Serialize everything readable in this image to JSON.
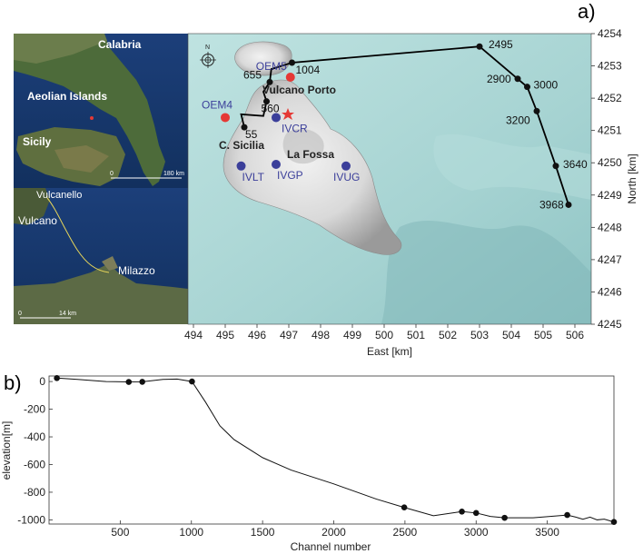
{
  "figure": {
    "panel_a_tag": "a)",
    "panel_b_tag": "b)"
  },
  "inset_top": {
    "labels": [
      "Calabria",
      "Aeolian Islands",
      "Sicily"
    ],
    "scale_start": "0",
    "scale_end": "180 km"
  },
  "inset_bottom": {
    "labels": [
      "Vulcanello",
      "Vulcano",
      "Milazzo"
    ],
    "scale_start": "0",
    "scale_end": "14 km"
  },
  "map": {
    "compass_letter": "N",
    "x_label": "East [km]",
    "y_label": "North [km]",
    "x_ticks": [
      "494",
      "495",
      "496",
      "497",
      "498",
      "499",
      "500",
      "501",
      "502",
      "503",
      "504",
      "505",
      "506"
    ],
    "y_ticks": [
      "4254",
      "4253",
      "4252",
      "4251",
      "4250",
      "4249",
      "4248",
      "4247",
      "4246",
      "4245"
    ],
    "place_labels": [
      "Vulcano Porto",
      "C. Sicilia",
      "La Fossa"
    ],
    "cable_markers": [
      {
        "label": "55",
        "east": 495.6,
        "north": 4251.1
      },
      {
        "label": "560",
        "east": 496.3,
        "north": 4251.9
      },
      {
        "label": "655",
        "east": 496.4,
        "north": 4252.5
      },
      {
        "label": "1004",
        "east": 497.1,
        "north": 4253.1
      },
      {
        "label": "2495",
        "east": 503.0,
        "north": 4253.6
      },
      {
        "label": "2900",
        "east": 504.2,
        "north": 4252.6
      },
      {
        "label": "3000",
        "east": 504.5,
        "north": 4252.35
      },
      {
        "label": "3200",
        "east": 504.8,
        "north": 4251.6
      },
      {
        "label": "3640",
        "east": 505.4,
        "north": 4249.9
      },
      {
        "label": "3968",
        "east": 505.8,
        "north": 4248.7
      }
    ],
    "stations": [
      {
        "label": "OEM5",
        "east": 497.05,
        "north": 4252.65,
        "type": "OBS"
      },
      {
        "label": "OEM4",
        "east": 495.0,
        "north": 4251.4,
        "type": "OBS"
      },
      {
        "label": "IVCR",
        "east": 496.6,
        "north": 4251.4,
        "type": "land"
      },
      {
        "label": "IVLT",
        "east": 495.5,
        "north": 4249.9,
        "type": "land"
      },
      {
        "label": "IVGP",
        "east": 496.6,
        "north": 4249.95,
        "type": "land"
      },
      {
        "label": "IVUG",
        "east": 498.8,
        "north": 4249.9,
        "type": "land"
      }
    ],
    "colors": {
      "obs": "#e53935",
      "land": "#3b3f9a",
      "cable": "#000000",
      "sea": "#a9d8d8"
    }
  },
  "chart_data": {
    "type": "line",
    "title": "",
    "xlabel": "Channel number",
    "ylabel": "elevation[m]",
    "xlim": [
      0,
      3968
    ],
    "ylim": [
      -1030,
      40
    ],
    "x_ticks": [
      "500",
      "1000",
      "1500",
      "2000",
      "2500",
      "3000",
      "3500"
    ],
    "y_ticks": [
      "0",
      "-200",
      "-400",
      "-600",
      "-800",
      "-1000"
    ],
    "x": [
      55,
      200,
      400,
      560,
      655,
      800,
      900,
      1004,
      1100,
      1200,
      1300,
      1500,
      1700,
      2000,
      2300,
      2495,
      2700,
      2900,
      3000,
      3100,
      3200,
      3400,
      3640,
      3700,
      3750,
      3800,
      3850,
      3900,
      3968
    ],
    "y": [
      25,
      15,
      0,
      -3,
      -2,
      15,
      18,
      0,
      -150,
      -320,
      -420,
      -550,
      -640,
      -740,
      -850,
      -910,
      -970,
      -940,
      -950,
      -975,
      -985,
      -985,
      -965,
      -980,
      -995,
      -980,
      -1000,
      -995,
      -1015
    ],
    "markers_x": [
      55,
      560,
      655,
      1004,
      2495,
      2900,
      3000,
      3200,
      3640,
      3968
    ],
    "markers_y": [
      25,
      -3,
      -2,
      0,
      -910,
      -940,
      -950,
      -985,
      -965,
      -1015
    ]
  }
}
